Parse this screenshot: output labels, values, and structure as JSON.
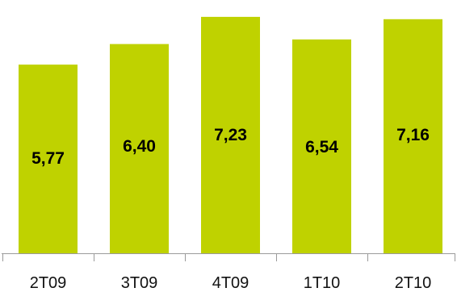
{
  "chart_data": {
    "type": "bar",
    "categories": [
      "2T09",
      "3T09",
      "4T09",
      "1T10",
      "2T10"
    ],
    "values": [
      5.77,
      6.4,
      7.23,
      6.54,
      7.16
    ],
    "value_labels": [
      "5,77",
      "6,40",
      "7,23",
      "6,54",
      "7,16"
    ],
    "title": "",
    "xlabel": "",
    "ylabel": "",
    "ylim": [
      0,
      7.5
    ],
    "grid": false,
    "legend": "none",
    "bar_color": "#bfd200",
    "axis_color": "#9a9a9a"
  }
}
